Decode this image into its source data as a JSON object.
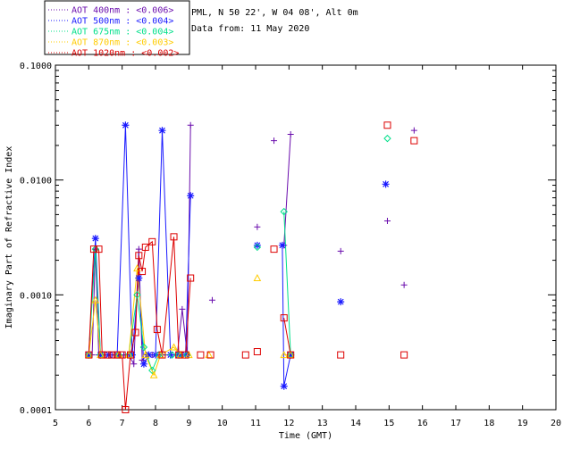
{
  "header": {
    "site": "PML, N 50 22', W 04 08', Alt 0m",
    "date": "Data from: 11 May 2020"
  },
  "chart_data": {
    "type": "line",
    "xlabel": "Time (GMT)",
    "ylabel": "Imaginary Part of Refractive Index",
    "xlim": [
      5,
      20
    ],
    "ylim": [
      0.0001,
      0.1
    ],
    "yscale": "log",
    "xticks": [
      "5",
      "6",
      "7",
      "8",
      "9",
      "10",
      "11",
      "12",
      "13",
      "14",
      "15",
      "16",
      "17",
      "18",
      "19",
      "20"
    ],
    "yticks": [
      "0.0001",
      "0.0010",
      "0.0100",
      "0.1000"
    ],
    "legend_position": "top-left",
    "series": [
      {
        "name": "AOT  400nm : <0.006>",
        "color": "#6a0dad",
        "marker": "plus",
        "segments": [
          [
            [
              6.0,
              0.0003
            ],
            [
              6.1,
              0.0003
            ],
            [
              6.2,
              0.0025
            ],
            [
              6.3,
              0.0003
            ],
            [
              6.5,
              0.0003
            ],
            [
              6.7,
              0.0003
            ],
            [
              6.9,
              0.0003
            ],
            [
              7.05,
              0.0003
            ],
            [
              7.2,
              0.0003
            ],
            [
              7.35,
              0.00025
            ],
            [
              7.5,
              0.0025
            ],
            [
              7.6,
              0.00027
            ],
            [
              7.75,
              0.0003
            ],
            [
              7.9,
              0.0003
            ],
            [
              8.05,
              0.0003
            ],
            [
              8.2,
              0.0003
            ],
            [
              8.45,
              0.0003
            ],
            [
              8.65,
              0.0003
            ],
            [
              8.8,
              0.00075
            ],
            [
              8.95,
              0.0003
            ],
            [
              9.05,
              0.03
            ]
          ],
          [
            [
              11.85,
              0.0027
            ],
            [
              12.05,
              0.025
            ]
          ]
        ],
        "points": [
          [
            9.7,
            0.0009
          ],
          [
            11.05,
            0.0039
          ],
          [
            11.55,
            0.022
          ],
          [
            13.55,
            0.0024
          ],
          [
            14.95,
            0.0044
          ],
          [
            15.45,
            0.00122
          ],
          [
            15.75,
            0.027
          ]
        ]
      },
      {
        "name": "AOT  500nm : <0.004>",
        "color": "#1a1aff",
        "marker": "star",
        "segments": [
          [
            [
              6.0,
              0.0003
            ],
            [
              6.2,
              0.0031
            ],
            [
              6.35,
              0.0003
            ],
            [
              6.6,
              0.0003
            ],
            [
              6.85,
              0.0003
            ],
            [
              7.1,
              0.03
            ],
            [
              7.3,
              0.0003
            ],
            [
              7.5,
              0.0014
            ],
            [
              7.65,
              0.00025
            ],
            [
              7.8,
              0.0003
            ],
            [
              8.0,
              0.0003
            ],
            [
              8.2,
              0.027
            ],
            [
              8.45,
              0.0003
            ],
            [
              8.7,
              0.0003
            ],
            [
              8.9,
              0.0003
            ],
            [
              9.05,
              0.0073
            ]
          ],
          [
            [
              11.8,
              0.0027
            ],
            [
              11.85,
              0.00016
            ],
            [
              12.05,
              0.0003
            ]
          ]
        ],
        "points": [
          [
            11.05,
            0.0027
          ],
          [
            13.55,
            0.00087
          ],
          [
            14.9,
            0.0092
          ]
        ]
      },
      {
        "name": "AOT  675nm : <0.004>",
        "color": "#00e08a",
        "marker": "diamond",
        "segments": [
          [
            [
              6.0,
              0.0003
            ],
            [
              6.2,
              0.0025
            ],
            [
              6.35,
              0.0003
            ],
            [
              6.9,
              0.0003
            ],
            [
              7.2,
              0.0003
            ],
            [
              7.45,
              0.001
            ],
            [
              7.65,
              0.00035
            ],
            [
              7.9,
              0.00022
            ],
            [
              8.1,
              0.0003
            ],
            [
              8.5,
              0.0003
            ],
            [
              8.7,
              0.0003
            ],
            [
              8.95,
              0.0003
            ]
          ],
          [
            [
              11.85,
              0.0053
            ],
            [
              12.05,
              0.0003
            ]
          ]
        ],
        "points": [
          [
            11.05,
            0.0026
          ],
          [
            14.95,
            0.023
          ]
        ]
      },
      {
        "name": "AOT  870nm : <0.003>",
        "color": "#ffcc00",
        "marker": "triangle",
        "segments": [
          [
            [
              6.0,
              0.0003
            ],
            [
              6.2,
              0.0009
            ],
            [
              6.35,
              0.0003
            ],
            [
              6.9,
              0.0003
            ],
            [
              7.2,
              0.0003
            ],
            [
              7.45,
              0.0017
            ],
            [
              7.7,
              0.0003
            ],
            [
              7.95,
              0.0002
            ],
            [
              8.15,
              0.0003
            ],
            [
              8.55,
              0.00035
            ],
            [
              8.75,
              0.0003
            ],
            [
              9.0,
              0.0003
            ]
          ],
          [
            [
              11.85,
              0.0003
            ],
            [
              12.05,
              0.0003
            ]
          ]
        ],
        "points": [
          [
            11.05,
            0.0014
          ],
          [
            9.6,
            0.0003
          ]
        ]
      },
      {
        "name": "AOT 1020nm : <0.002>",
        "color": "#dd0000",
        "marker": "square",
        "segments": [
          [
            [
              6.0,
              0.0003
            ],
            [
              6.15,
              0.0025
            ],
            [
              6.3,
              0.0025
            ],
            [
              6.4,
              0.0003
            ],
            [
              6.55,
              0.0003
            ],
            [
              6.7,
              0.0003
            ],
            [
              6.85,
              0.0003
            ],
            [
              7.0,
              0.0003
            ],
            [
              7.1,
              0.0001
            ],
            [
              7.25,
              0.0003
            ],
            [
              7.4,
              0.00047
            ],
            [
              7.5,
              0.0022
            ],
            [
              7.6,
              0.0016
            ],
            [
              7.7,
              0.0026
            ],
            [
              7.9,
              0.0029
            ],
            [
              8.05,
              0.0005
            ],
            [
              8.2,
              0.0003
            ],
            [
              8.55,
              0.0032
            ],
            [
              8.7,
              0.0003
            ],
            [
              8.9,
              0.0003
            ],
            [
              9.05,
              0.0014
            ]
          ],
          [
            [
              11.85,
              0.00063
            ],
            [
              12.05,
              0.0003
            ]
          ]
        ],
        "points": [
          [
            9.35,
            0.0003
          ],
          [
            9.65,
            0.0003
          ],
          [
            10.7,
            0.0003
          ],
          [
            11.05,
            0.00032
          ],
          [
            11.55,
            0.0025
          ],
          [
            13.55,
            0.0003
          ],
          [
            14.95,
            0.03
          ],
          [
            15.45,
            0.0003
          ],
          [
            15.75,
            0.022
          ]
        ]
      }
    ]
  }
}
